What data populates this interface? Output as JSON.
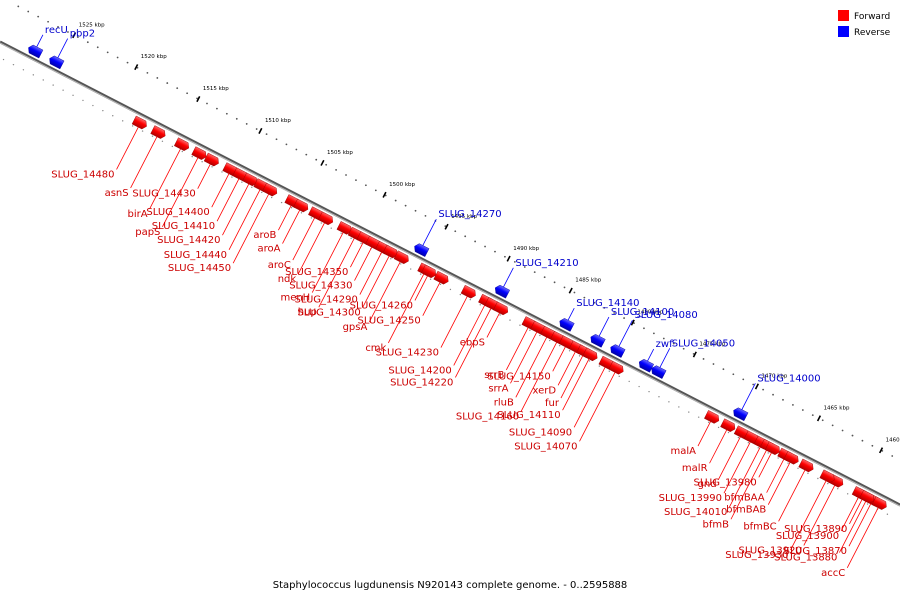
{
  "legend": {
    "forward": {
      "label": "Forward",
      "color": "#ff0000"
    },
    "reverse": {
      "label": "Reverse",
      "color": "#0000ff"
    }
  },
  "caption": "Staphylococcus lugdunensis N920143 complete genome. - 0..2595888",
  "scale_unit": "kbp",
  "scale_ticks": [
    1525,
    1520,
    1515,
    1510,
    1505,
    1500,
    1495,
    1490,
    1485,
    1480,
    1475,
    1470,
    1465,
    1460
  ],
  "genes": [
    {
      "name": "recU",
      "strand": "reverse",
      "kbp": 1527.0
    },
    {
      "name": "pbp2",
      "strand": "reverse",
      "kbp": 1525.3
    },
    {
      "name": "SLUG_14480",
      "strand": "forward",
      "kbp": 1517.9
    },
    {
      "name": "asnS",
      "strand": "forward",
      "kbp": 1516.4
    },
    {
      "name": "birA",
      "strand": "forward",
      "kbp": 1514.5
    },
    {
      "name": "papS",
      "strand": "forward",
      "kbp": 1513.1
    },
    {
      "name": "SLUG_14430",
      "strand": "forward",
      "kbp": 1512.1
    },
    {
      "name": "SLUG_14400",
      "strand": "forward",
      "kbp": 1510.6
    },
    {
      "name": "SLUG_14410",
      "strand": "forward",
      "kbp": 1509.8
    },
    {
      "name": "SLUG_14420",
      "strand": "forward",
      "kbp": 1509.0
    },
    {
      "name": "SLUG_14440",
      "strand": "forward",
      "kbp": 1508.1
    },
    {
      "name": "SLUG_14450",
      "strand": "forward",
      "kbp": 1507.4
    },
    {
      "name": "aroB",
      "strand": "forward",
      "kbp": 1505.6
    },
    {
      "name": "aroA",
      "strand": "forward",
      "kbp": 1504.9
    },
    {
      "name": "aroC",
      "strand": "forward",
      "kbp": 1503.7
    },
    {
      "name": "ndk",
      "strand": "forward",
      "kbp": 1502.9
    },
    {
      "name": "menH",
      "strand": "forward",
      "kbp": 1501.4
    },
    {
      "name": "hup",
      "strand": "forward",
      "kbp": 1500.5
    },
    {
      "name": "SLUG_14350",
      "strand": "forward",
      "kbp": 1499.8
    },
    {
      "name": "SLUG_14330",
      "strand": "forward",
      "kbp": 1499.1
    },
    {
      "name": "SLUG_14290",
      "strand": "forward",
      "kbp": 1498.3
    },
    {
      "name": "SLUG_14300",
      "strand": "forward",
      "kbp": 1497.7
    },
    {
      "name": "gpsA",
      "strand": "forward",
      "kbp": 1496.8
    },
    {
      "name": "cmk",
      "strand": "forward",
      "kbp": 1494.9
    },
    {
      "name": "SLUG_14260",
      "strand": "forward",
      "kbp": 1494.6
    },
    {
      "name": "SLUG_14250",
      "strand": "forward",
      "kbp": 1493.6
    },
    {
      "name": "SLUG_14270",
      "strand": "reverse",
      "kbp": 1495.9
    },
    {
      "name": "SLUG_14230",
      "strand": "forward",
      "kbp": 1491.4
    },
    {
      "name": "SLUG_14200",
      "strand": "forward",
      "kbp": 1490.0
    },
    {
      "name": "SLUG_14220",
      "strand": "forward",
      "kbp": 1489.5
    },
    {
      "name": "ebpS",
      "strand": "forward",
      "kbp": 1488.8
    },
    {
      "name": "SLUG_14210",
      "strand": "reverse",
      "kbp": 1489.4
    },
    {
      "name": "srrB",
      "strand": "forward",
      "kbp": 1486.5
    },
    {
      "name": "srrA",
      "strand": "forward",
      "kbp": 1485.8
    },
    {
      "name": "rluB",
      "strand": "forward",
      "kbp": 1485.0
    },
    {
      "name": "SLUG_14160",
      "strand": "forward",
      "kbp": 1484.2
    },
    {
      "name": "SLUG_14150",
      "strand": "forward",
      "kbp": 1483.5
    },
    {
      "name": "xerD",
      "strand": "forward",
      "kbp": 1482.7
    },
    {
      "name": "fur",
      "strand": "forward",
      "kbp": 1482.1
    },
    {
      "name": "SLUG_14110",
      "strand": "forward",
      "kbp": 1481.6
    },
    {
      "name": "SLUG_14090",
      "strand": "forward",
      "kbp": 1480.3
    },
    {
      "name": "SLUG_14070",
      "strand": "forward",
      "kbp": 1479.5
    },
    {
      "name": "SLUG_14140",
      "strand": "reverse",
      "kbp": 1484.2
    },
    {
      "name": "SLUG_14100",
      "strand": "reverse",
      "kbp": 1481.7
    },
    {
      "name": "SLUG_14080",
      "strand": "reverse",
      "kbp": 1480.1
    },
    {
      "name": "zwf",
      "strand": "reverse",
      "kbp": 1477.8
    },
    {
      "name": "SLUG_14050",
      "strand": "reverse",
      "kbp": 1476.8
    },
    {
      "name": "SLUG_14000",
      "strand": "reverse",
      "kbp": 1470.2
    },
    {
      "name": "malA",
      "strand": "forward",
      "kbp": 1471.8
    },
    {
      "name": "malR",
      "strand": "forward",
      "kbp": 1470.5
    },
    {
      "name": "gnd",
      "strand": "forward",
      "kbp": 1469.4
    },
    {
      "name": "SLUG_13990",
      "strand": "forward",
      "kbp": 1468.6
    },
    {
      "name": "SLUG_14010",
      "strand": "forward",
      "kbp": 1467.8
    },
    {
      "name": "bfmB",
      "strand": "forward",
      "kbp": 1467.3
    },
    {
      "name": "SLUG_13980",
      "strand": "forward",
      "kbp": 1466.9
    },
    {
      "name": "bfmBAA",
      "strand": "forward",
      "kbp": 1465.9
    },
    {
      "name": "bfmBAB",
      "strand": "forward",
      "kbp": 1465.4
    },
    {
      "name": "bfmBC",
      "strand": "forward",
      "kbp": 1464.2
    },
    {
      "name": "SLUG_13920",
      "strand": "forward",
      "kbp": 1461.8
    },
    {
      "name": "SLUG_13930",
      "strand": "forward",
      "kbp": 1462.5
    },
    {
      "name": "SLUG_13890",
      "strand": "forward",
      "kbp": 1459.6
    },
    {
      "name": "SLUG_13900",
      "strand": "forward",
      "kbp": 1459.9
    },
    {
      "name": "SLUG_13870",
      "strand": "forward",
      "kbp": 1458.9
    },
    {
      "name": "SLUG_13880",
      "strand": "forward",
      "kbp": 1459.3
    },
    {
      "name": "accC",
      "strand": "forward",
      "kbp": 1458.3
    }
  ]
}
